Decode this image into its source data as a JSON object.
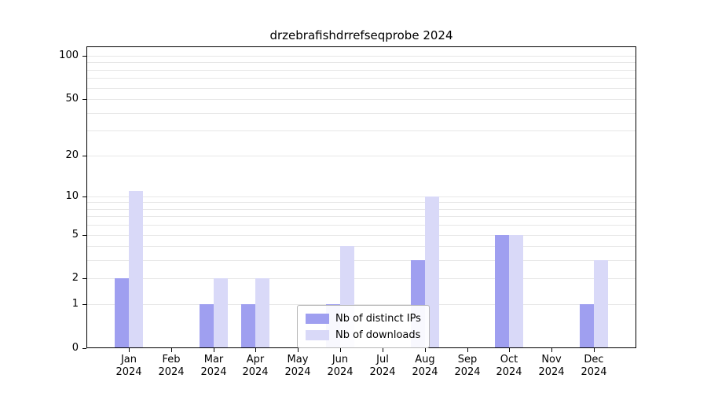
{
  "title": "drzebrafishdrrefseqprobe 2024",
  "chart_data": {
    "type": "bar",
    "title": "drzebrafishdrrefseqprobe 2024",
    "categories": [
      "Jan",
      "Feb",
      "Mar",
      "Apr",
      "May",
      "Jun",
      "Jul",
      "Aug",
      "Sep",
      "Oct",
      "Nov",
      "Dec"
    ],
    "year_label": "2024",
    "series": [
      {
        "name": "Nb of distinct IPs",
        "color": "#9f9ff0",
        "values": [
          2,
          0,
          1,
          1,
          0,
          1,
          0,
          3,
          0,
          5,
          0,
          1
        ]
      },
      {
        "name": "Nb of downloads",
        "color": "#d9d9f8",
        "values": [
          11,
          0,
          2,
          2,
          0,
          4,
          0,
          10,
          0,
          5,
          0,
          3
        ]
      }
    ],
    "y_ticks": [
      0,
      1,
      2,
      5,
      10,
      20,
      50,
      100
    ],
    "grid_values": [
      1,
      2,
      3,
      4,
      5,
      6,
      7,
      8,
      9,
      10,
      20,
      30,
      40,
      50,
      60,
      70,
      80,
      90,
      100
    ],
    "y_scale": "log1p",
    "ylim": [
      0,
      100
    ],
    "grid": "horizontal",
    "legend_position": "bottom-center",
    "colors": {
      "axis": "#000000",
      "gridline": "#e7e7e7",
      "background": "#ffffff"
    }
  }
}
